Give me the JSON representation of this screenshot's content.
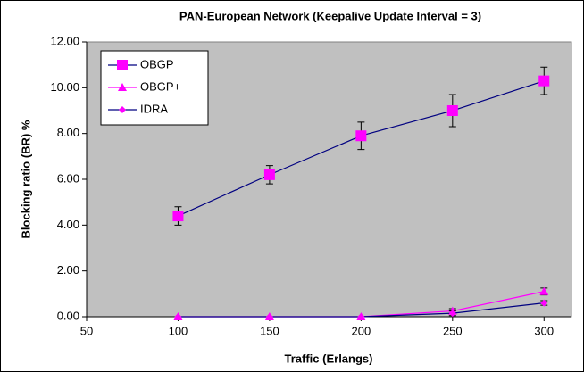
{
  "chart_data": {
    "type": "line",
    "title": "PAN-European Network (Keepalive Update Interval = 3)",
    "xlabel": "Traffic (Erlangs)",
    "ylabel": "Blocking ratio (BR) %",
    "x": [
      100,
      150,
      200,
      250,
      300
    ],
    "series": [
      {
        "name": "OBGP",
        "color": "#000080",
        "marker": "square",
        "marker_color": "#ff00ff",
        "values": [
          4.4,
          6.2,
          7.9,
          9.0,
          10.3
        ],
        "errors": [
          0.4,
          0.4,
          0.6,
          0.7,
          0.6
        ]
      },
      {
        "name": "OBGP+",
        "color": "#ff00ff",
        "marker": "triangle",
        "marker_color": "#ff00ff",
        "values": [
          0,
          0,
          0,
          0.25,
          1.1
        ],
        "errors": [
          0,
          0,
          0,
          0.1,
          0.15
        ]
      },
      {
        "name": "IDRA",
        "color": "#000080",
        "marker": "diamond",
        "marker_color": "#ff00ff",
        "values": [
          0,
          0,
          0,
          0.15,
          0.6
        ],
        "errors": [
          0,
          0,
          0,
          0.1,
          0.1
        ]
      }
    ],
    "xlim": [
      50,
      315
    ],
    "xticks": [
      50,
      100,
      150,
      200,
      250,
      300
    ],
    "ylim": [
      0,
      12
    ],
    "yticks": [
      {
        "value": 0,
        "label": "0.00"
      },
      {
        "value": 2,
        "label": "2.00"
      },
      {
        "value": 4,
        "label": "4.00"
      },
      {
        "value": 6,
        "label": "6.00"
      },
      {
        "value": 8,
        "label": "8.00"
      },
      {
        "value": 10,
        "label": "10.00"
      },
      {
        "value": 12,
        "label": "12.00"
      }
    ],
    "plot_background": "#c0c0c0",
    "legend": "upper left"
  }
}
